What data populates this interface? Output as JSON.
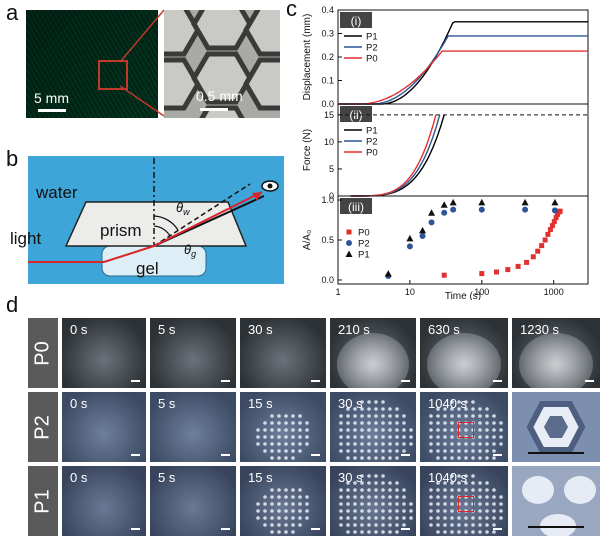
{
  "labels": {
    "a": "a",
    "b": "b",
    "c": "c",
    "d": "d"
  },
  "panel_a": {
    "scale_left": "5 mm",
    "scale_right": "0.5 mm",
    "colors": {
      "green_photo": "#166a52",
      "zoom_box": "#c0392b"
    }
  },
  "panel_b": {
    "water": "water",
    "prism": "prism",
    "light": "light",
    "gel": "gel",
    "theta_label": "θ",
    "theta_sub_upper": "w",
    "theta_sub_lower": "g",
    "colors": {
      "water_bg": "#3ea5d8",
      "beam": "#d7262c"
    }
  },
  "chart_data": [
    {
      "type": "line",
      "panel": "(i)",
      "ylabel": "Displacement (mm)",
      "ylim": [
        0.0,
        0.4
      ],
      "yticks": [
        "0.0",
        "0.1",
        "0.2",
        "0.3",
        "0.4"
      ],
      "xscale": "log",
      "xlim": [
        1,
        3000
      ],
      "legend": "top-left",
      "series": [
        {
          "name": "P1",
          "color": "#000000",
          "plateau": 0.35,
          "rise_start_s": 4,
          "rise_end_s": 40
        },
        {
          "name": "P2",
          "color": "#2f5597",
          "plateau": 0.29,
          "rise_start_s": 3,
          "rise_end_s": 34
        },
        {
          "name": "P0",
          "color": "#e03030",
          "plateau": 0.225,
          "rise_start_s": 2,
          "rise_end_s": 28
        }
      ]
    },
    {
      "type": "line",
      "panel": "(ii)",
      "ylabel": "Force (N)",
      "ylim": [
        0,
        17
      ],
      "yticks": [
        "0",
        "5",
        "10",
        "15"
      ],
      "xscale": "log",
      "xlim": [
        1,
        3000
      ],
      "threshold": 15,
      "legend": "top-left",
      "series": [
        {
          "name": "P1",
          "color": "#000000",
          "reach_s": 30
        },
        {
          "name": "P2",
          "color": "#2f5597",
          "reach_s": 26
        },
        {
          "name": "P0",
          "color": "#e03030",
          "reach_s": 23
        }
      ]
    },
    {
      "type": "scatter",
      "panel": "(iii)",
      "ylabel": "A/A₀",
      "xlabel": "Time (s)",
      "ylim": [
        -0.05,
        1.05
      ],
      "yticks": [
        "0.0",
        "0.5",
        "1.0"
      ],
      "xscale": "log",
      "xlim": [
        1,
        3000
      ],
      "xticks": [
        "1",
        "10",
        "100",
        "1000"
      ],
      "legend": "left",
      "series": [
        {
          "name": "P0",
          "color": "#e03030",
          "marker": "square",
          "x": [
            30,
            100,
            160,
            230,
            320,
            420,
            520,
            600,
            680,
            760,
            830,
            900,
            960,
            1020,
            1080,
            1130,
            1180,
            1230
          ],
          "y": [
            0.06,
            0.08,
            0.1,
            0.13,
            0.17,
            0.22,
            0.29,
            0.36,
            0.43,
            0.5,
            0.57,
            0.63,
            0.68,
            0.73,
            0.78,
            0.82,
            0.85,
            0.86
          ]
        },
        {
          "name": "P2",
          "color": "#2f5597",
          "marker": "circle",
          "x": [
            5,
            10,
            15,
            20,
            30,
            40,
            100,
            400,
            1040
          ],
          "y": [
            0.05,
            0.42,
            0.55,
            0.72,
            0.84,
            0.88,
            0.88,
            0.88,
            0.87
          ]
        },
        {
          "name": "P1",
          "color": "#111111",
          "marker": "triangle",
          "x": [
            5,
            10,
            15,
            20,
            30,
            40,
            100,
            400,
            1040
          ],
          "y": [
            0.08,
            0.52,
            0.62,
            0.84,
            0.94,
            0.97,
            0.97,
            0.97,
            0.97
          ]
        }
      ]
    }
  ],
  "panel_d": {
    "rows": [
      {
        "label": "P0",
        "times": [
          "0 s",
          "5 s",
          "30 s",
          "210 s",
          "630 s",
          "1230 s"
        ]
      },
      {
        "label": "P2",
        "times": [
          "0 s",
          "5 s",
          "15 s",
          "30 s",
          "1040 s"
        ]
      },
      {
        "label": "P1",
        "times": [
          "0 s",
          "5 s",
          "15 s",
          "30 s",
          "1040 s"
        ]
      }
    ]
  }
}
